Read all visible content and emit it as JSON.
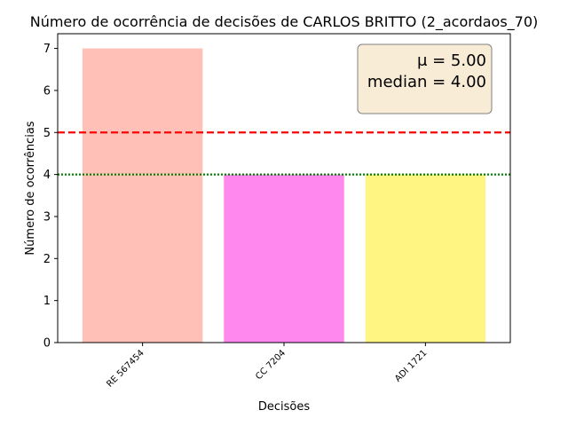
{
  "chart_data": {
    "type": "bar",
    "title": "Número de ocorrência de decisões de CARLOS BRITTO (2_acordaos_70)",
    "xlabel": "Decisões",
    "ylabel": "Número de ocorrências",
    "categories": [
      "RE 567454",
      "CC 7204",
      "ADI 1721"
    ],
    "values": [
      7,
      4,
      4
    ],
    "colors": [
      "#ffc0b8",
      "#ff88ee",
      "#fff583"
    ],
    "ylim": [
      0,
      7.35
    ],
    "yticks": [
      "0",
      "1",
      "2",
      "3",
      "4",
      "5",
      "6",
      "7"
    ],
    "grid": false,
    "mean": {
      "value": 5.0,
      "label": "μ = 5.00",
      "color": "#ff0000"
    },
    "median": {
      "value": 4.0,
      "label": "median = 4.00",
      "color": "#008000"
    },
    "stats_box_placement": "top-right"
  }
}
